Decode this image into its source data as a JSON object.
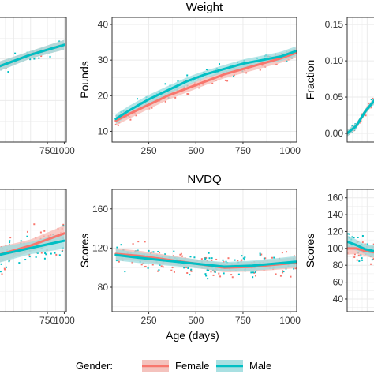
{
  "legend": {
    "title": "Gender:",
    "entries": [
      {
        "name": "Female",
        "color": "#f8766d"
      },
      {
        "name": "Male",
        "color": "#00bfc4"
      }
    ]
  },
  "shared_xlabel": "Age (days)",
  "colors": {
    "female": "#f8766d",
    "male": "#00bfc4",
    "panel_bg": "#ffffff",
    "grid": "#ebebeb"
  },
  "chart_data": [
    {
      "type": "scatter",
      "title": "",
      "xlabel": "",
      "ylabel": "",
      "xlim": [
        0,
        1030
      ],
      "ylim": [
        0,
        100
      ],
      "xticks": [
        750,
        1000
      ],
      "xtick_labels": [
        "750",
        "1000"
      ],
      "yticks": [],
      "ytick_labels": [],
      "grid": true,
      "series": [
        {
          "name": "Female",
          "x": [
            0,
            250,
            500,
            750,
            1000
          ],
          "y": [
            60,
            65,
            70,
            74,
            78
          ]
        },
        {
          "name": "Male",
          "x": [
            0,
            250,
            500,
            750,
            1000
          ],
          "y": [
            60,
            65,
            70,
            74,
            78
          ]
        }
      ]
    },
    {
      "type": "scatter",
      "title": "Weight",
      "xlabel": "",
      "ylabel": "Pounds",
      "xlim": [
        55,
        1035
      ],
      "ylim": [
        7,
        42
      ],
      "xticks": [
        250,
        500,
        750,
        1000
      ],
      "xtick_labels": [
        "250",
        "500",
        "750",
        "1000"
      ],
      "yticks": [
        10,
        20,
        30,
        40
      ],
      "ytick_labels": [
        "10",
        "20",
        "30",
        "40"
      ],
      "grid": true,
      "series": [
        {
          "name": "Female",
          "x": [
            75,
            150,
            250,
            350,
            450,
            550,
            650,
            750,
            850,
            950,
            1030
          ],
          "y": [
            13,
            15,
            17.5,
            20,
            22,
            24,
            26,
            27.5,
            29,
            30.5,
            32
          ]
        },
        {
          "name": "Male",
          "x": [
            75,
            150,
            250,
            350,
            450,
            550,
            650,
            750,
            850,
            950,
            1030
          ],
          "y": [
            13.5,
            16,
            19,
            21.5,
            24,
            26,
            27.5,
            29,
            30,
            31,
            32.5
          ]
        }
      ]
    },
    {
      "type": "scatter",
      "title": "",
      "xlabel": "",
      "ylabel": "Fraction",
      "xlim": [
        0,
        100
      ],
      "ylim": [
        -0.012,
        0.16
      ],
      "xticks": [],
      "xtick_labels": [],
      "yticks": [
        0,
        0.05,
        0.1,
        0.15
      ],
      "ytick_labels": [
        "0.00",
        "0.05",
        "0.10",
        "0.15"
      ],
      "grid": true,
      "series": [
        {
          "name": "Female",
          "x": [
            0,
            30,
            60,
            100
          ],
          "y": [
            0,
            0.01,
            0.03,
            0.05
          ]
        },
        {
          "name": "Male",
          "x": [
            0,
            30,
            60,
            100
          ],
          "y": [
            0,
            0.01,
            0.03,
            0.05
          ]
        }
      ]
    },
    {
      "type": "scatter",
      "title": "",
      "xlabel": "",
      "ylabel": "",
      "xlim": [
        0,
        1030
      ],
      "ylim": [
        0,
        100
      ],
      "xticks": [
        750,
        1000
      ],
      "xtick_labels": [
        "750",
        "1000"
      ],
      "yticks": [],
      "ytick_labels": [],
      "grid": true,
      "series": [
        {
          "name": "Female",
          "x": [
            0,
            250,
            500,
            750,
            1000
          ],
          "y": [
            46,
            50,
            54,
            59,
            64
          ]
        },
        {
          "name": "Male",
          "x": [
            0,
            250,
            500,
            750,
            1000
          ],
          "y": [
            46,
            49,
            52,
            55,
            58
          ]
        }
      ]
    },
    {
      "type": "scatter",
      "title": "NVDQ",
      "xlabel": "Age (days)",
      "ylabel": "Scores",
      "xlim": [
        55,
        1035
      ],
      "ylim": [
        55,
        180
      ],
      "xticks": [
        250,
        500,
        750,
        1000
      ],
      "xtick_labels": [
        "250",
        "500",
        "750",
        "1000"
      ],
      "yticks": [
        80,
        120,
        160
      ],
      "ytick_labels": [
        "80",
        "120",
        "160"
      ],
      "grid": true,
      "series": [
        {
          "name": "Female",
          "x": [
            75,
            200,
            350,
            500,
            650,
            800,
            1030
          ],
          "y": [
            114,
            112,
            108,
            104,
            100,
            101,
            105
          ]
        },
        {
          "name": "Male",
          "x": [
            75,
            200,
            350,
            500,
            650,
            800,
            1030
          ],
          "y": [
            113,
            110,
            107,
            104,
            101,
            102,
            106
          ]
        }
      ]
    },
    {
      "type": "scatter",
      "title": "",
      "xlabel": "",
      "ylabel": "Scores",
      "xlim": [
        0,
        100
      ],
      "ylim": [
        25,
        170
      ],
      "xticks": [],
      "xtick_labels": [],
      "yticks": [
        40,
        60,
        80,
        100,
        120,
        140,
        160
      ],
      "ytick_labels": [
        "40",
        "60",
        "80",
        "100",
        "120",
        "140",
        "160"
      ],
      "grid": true,
      "series": [
        {
          "name": "Female",
          "x": [
            0,
            30,
            60,
            100
          ],
          "y": [
            100,
            100,
            97,
            95
          ]
        },
        {
          "name": "Male",
          "x": [
            0,
            30,
            60,
            100
          ],
          "y": [
            108,
            104,
            99,
            96
          ]
        }
      ]
    }
  ]
}
